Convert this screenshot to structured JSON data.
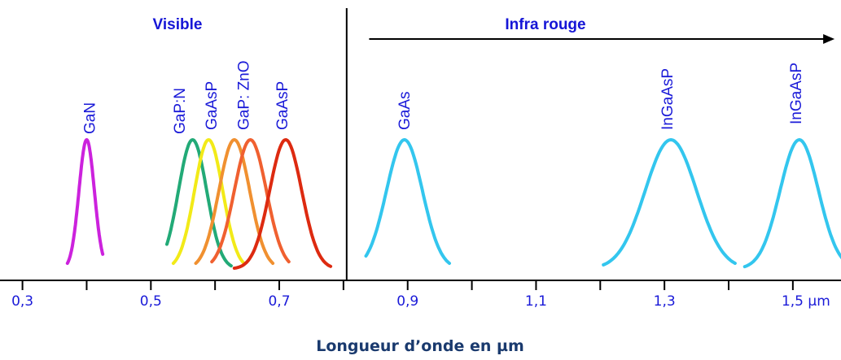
{
  "chart_data": {
    "type": "line",
    "xlabel": "Longueur d’onde en µm",
    "xlim": [
      0.265,
      1.575
    ],
    "regions": {
      "visible": {
        "label": "Visible"
      },
      "infrared": {
        "label": "Infra rouge",
        "arrow_from": 0.84,
        "arrow_to": 1.565
      },
      "separator_x": 0.805
    },
    "ticks": [
      {
        "x": 0.3,
        "label": "0,3"
      },
      {
        "x": 0.4,
        "label": ""
      },
      {
        "x": 0.5,
        "label": "0,5"
      },
      {
        "x": 0.6,
        "label": ""
      },
      {
        "x": 0.7,
        "label": "0,7"
      },
      {
        "x": 0.8,
        "label": ""
      },
      {
        "x": 0.9,
        "label": "0,9"
      },
      {
        "x": 1.0,
        "label": ""
      },
      {
        "x": 1.1,
        "label": "1,1"
      },
      {
        "x": 1.2,
        "label": ""
      },
      {
        "x": 1.3,
        "label": "1,3"
      },
      {
        "x": 1.4,
        "label": ""
      },
      {
        "x": 1.5,
        "label": "1,5 µm"
      }
    ],
    "series": [
      {
        "name": "GaN",
        "center": 0.4,
        "width": 0.012,
        "start": 0.37,
        "end": 0.425,
        "color": "#cc22dd"
      },
      {
        "name": "GaP:N",
        "center": 0.565,
        "width": 0.022,
        "start": 0.525,
        "end": 0.625,
        "color": "#22aa77"
      },
      {
        "name": "GaAsP",
        "center": 0.59,
        "width": 0.022,
        "start": 0.535,
        "end": 0.645,
        "color": "#f2ea18"
      },
      {
        "name": "",
        "center": 0.63,
        "width": 0.024,
        "start": 0.57,
        "end": 0.69,
        "color": "#f09030"
      },
      {
        "name": "GaP: ZnO",
        "center": 0.655,
        "width": 0.025,
        "start": 0.595,
        "end": 0.715,
        "color": "#f06030"
      },
      {
        "name": "GaAsP",
        "center": 0.71,
        "width": 0.025,
        "start": 0.63,
        "end": 0.78,
        "color": "#dd2a10"
      },
      {
        "name": "GaAs",
        "center": 0.895,
        "width": 0.028,
        "start": 0.835,
        "end": 0.965,
        "color": "#33c6ee"
      },
      {
        "name": "InGaAsP",
        "center": 1.31,
        "width": 0.04,
        "start": 1.205,
        "end": 1.41,
        "color": "#33c6ee"
      },
      {
        "name": "InGaAsP",
        "center": 1.51,
        "width": 0.03,
        "start": 1.425,
        "end": 1.58,
        "color": "#33c6ee"
      }
    ],
    "peak_label_order": [
      "GaN",
      "GaP:N",
      "GaAsP",
      "GaP: ZnO",
      "GaAsP",
      "GaAs",
      "InGaAsP",
      "InGaAsP"
    ]
  }
}
